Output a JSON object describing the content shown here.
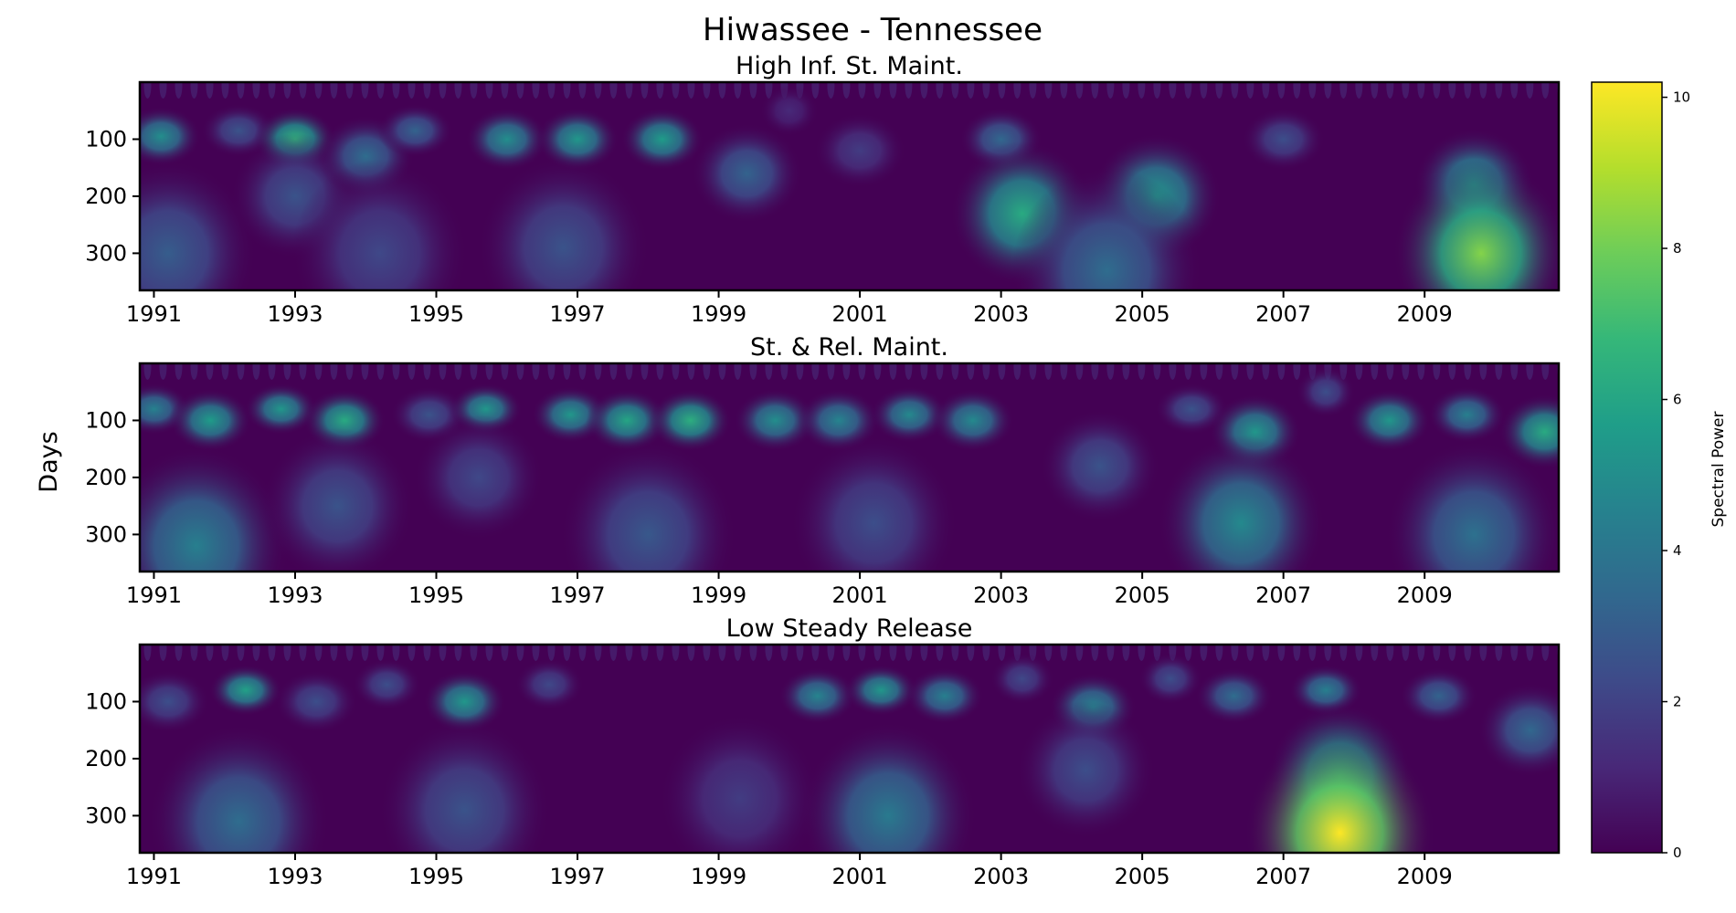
{
  "chart_data": {
    "type": "heatmap",
    "title": "Hiwassee - Tennessee",
    "ylabel": "Days",
    "x_tick_labels": [
      "1991",
      "1993",
      "1995",
      "1997",
      "1999",
      "2001",
      "2003",
      "2005",
      "2007",
      "2009"
    ],
    "x_range": [
      1990.8,
      2010.9
    ],
    "y_tick_labels": [
      "100",
      "200",
      "300"
    ],
    "y_range": [
      0,
      365
    ],
    "y_inverted": true,
    "colorbar": {
      "label": "Spectral Power",
      "tick_labels": [
        "0",
        "2",
        "4",
        "6",
        "8",
        "10"
      ],
      "range": [
        0,
        10.2
      ],
      "colormap": "viridis"
    },
    "panels": [
      {
        "title": "High Inf. St. Maint.",
        "features": [
          {
            "year": 1991.1,
            "period": 95,
            "power": 5.0
          },
          {
            "year": 1991.2,
            "period": 300,
            "power": 3.0
          },
          {
            "year": 1992.2,
            "period": 85,
            "power": 2.6
          },
          {
            "year": 1993.0,
            "period": 100,
            "power": 6.6
          },
          {
            "year": 1993.0,
            "period": 200,
            "power": 2.6
          },
          {
            "year": 1994.0,
            "period": 130,
            "power": 3.6
          },
          {
            "year": 1994.2,
            "period": 300,
            "power": 2.2
          },
          {
            "year": 1994.7,
            "period": 85,
            "power": 3.2
          },
          {
            "year": 1996.0,
            "period": 100,
            "power": 5.0
          },
          {
            "year": 1997.0,
            "period": 100,
            "power": 5.4
          },
          {
            "year": 1996.8,
            "period": 290,
            "power": 2.6
          },
          {
            "year": 1998.2,
            "period": 100,
            "power": 5.6
          },
          {
            "year": 1999.4,
            "period": 160,
            "power": 3.2
          },
          {
            "year": 2000.0,
            "period": 50,
            "power": 1.2
          },
          {
            "year": 2001.0,
            "period": 120,
            "power": 1.8
          },
          {
            "year": 2003.0,
            "period": 100,
            "power": 3.4
          },
          {
            "year": 2003.3,
            "period": 230,
            "power": 6.2
          },
          {
            "year": 2005.2,
            "period": 200,
            "power": 5.4
          },
          {
            "year": 2004.5,
            "period": 330,
            "power": 3.6
          },
          {
            "year": 2007.0,
            "period": 100,
            "power": 2.4
          },
          {
            "year": 2009.7,
            "period": 180,
            "power": 5.4
          },
          {
            "year": 2009.8,
            "period": 300,
            "power": 8.3
          }
        ]
      },
      {
        "title": "St. & Rel. Maint.",
        "features": [
          {
            "year": 1991.0,
            "period": 80,
            "power": 4.5
          },
          {
            "year": 1991.8,
            "period": 100,
            "power": 5.6
          },
          {
            "year": 1991.6,
            "period": 320,
            "power": 4.4
          },
          {
            "year": 1992.8,
            "period": 80,
            "power": 5.4
          },
          {
            "year": 1993.7,
            "period": 100,
            "power": 6.2
          },
          {
            "year": 1993.6,
            "period": 250,
            "power": 2.6
          },
          {
            "year": 1994.9,
            "period": 90,
            "power": 2.6
          },
          {
            "year": 1995.7,
            "period": 80,
            "power": 5.4
          },
          {
            "year": 1995.6,
            "period": 200,
            "power": 2.2
          },
          {
            "year": 1996.9,
            "period": 90,
            "power": 5.4
          },
          {
            "year": 1997.7,
            "period": 100,
            "power": 6.0
          },
          {
            "year": 1998.6,
            "period": 100,
            "power": 6.4
          },
          {
            "year": 1998.0,
            "period": 300,
            "power": 2.8
          },
          {
            "year": 1999.8,
            "period": 100,
            "power": 5.0
          },
          {
            "year": 2000.7,
            "period": 100,
            "power": 4.6
          },
          {
            "year": 2001.7,
            "period": 90,
            "power": 4.8
          },
          {
            "year": 2002.6,
            "period": 100,
            "power": 4.8
          },
          {
            "year": 2001.2,
            "period": 280,
            "power": 2.4
          },
          {
            "year": 2004.4,
            "period": 180,
            "power": 2.6
          },
          {
            "year": 2005.7,
            "period": 80,
            "power": 2.6
          },
          {
            "year": 2006.6,
            "period": 120,
            "power": 5.4
          },
          {
            "year": 2006.4,
            "period": 280,
            "power": 4.8
          },
          {
            "year": 2007.6,
            "period": 50,
            "power": 2.4
          },
          {
            "year": 2008.5,
            "period": 100,
            "power": 5.4
          },
          {
            "year": 2009.6,
            "period": 90,
            "power": 4.4
          },
          {
            "year": 2010.7,
            "period": 120,
            "power": 6.2
          },
          {
            "year": 2009.7,
            "period": 300,
            "power": 3.8
          }
        ]
      },
      {
        "title": "Low Steady Release",
        "features": [
          {
            "year": 1991.2,
            "period": 100,
            "power": 2.4
          },
          {
            "year": 1992.3,
            "period": 80,
            "power": 5.8
          },
          {
            "year": 1992.2,
            "period": 310,
            "power": 3.6
          },
          {
            "year": 1993.3,
            "period": 100,
            "power": 2.4
          },
          {
            "year": 1994.3,
            "period": 70,
            "power": 2.4
          },
          {
            "year": 1995.4,
            "period": 100,
            "power": 5.4
          },
          {
            "year": 1995.4,
            "period": 290,
            "power": 2.6
          },
          {
            "year": 1996.6,
            "period": 70,
            "power": 2.2
          },
          {
            "year": 1999.3,
            "period": 270,
            "power": 1.8
          },
          {
            "year": 2000.4,
            "period": 90,
            "power": 4.6
          },
          {
            "year": 2001.3,
            "period": 80,
            "power": 5.4
          },
          {
            "year": 2002.2,
            "period": 90,
            "power": 4.4
          },
          {
            "year": 2001.4,
            "period": 300,
            "power": 4.2
          },
          {
            "year": 2003.3,
            "period": 60,
            "power": 2.2
          },
          {
            "year": 2004.3,
            "period": 110,
            "power": 4.6
          },
          {
            "year": 2004.2,
            "period": 220,
            "power": 2.4
          },
          {
            "year": 2005.4,
            "period": 60,
            "power": 2.4
          },
          {
            "year": 2006.3,
            "period": 90,
            "power": 3.6
          },
          {
            "year": 2007.6,
            "period": 80,
            "power": 4.4
          },
          {
            "year": 2007.8,
            "period": 230,
            "power": 6.4
          },
          {
            "year": 2007.8,
            "period": 330,
            "power": 10.2
          },
          {
            "year": 2009.2,
            "period": 90,
            "power": 3.2
          },
          {
            "year": 2010.5,
            "period": 150,
            "power": 3.4
          }
        ]
      }
    ]
  }
}
